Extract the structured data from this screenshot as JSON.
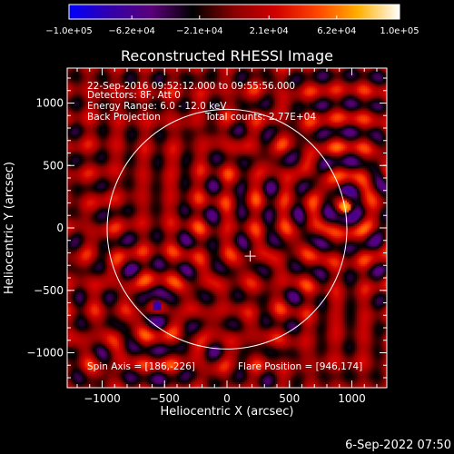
{
  "chart_data": {
    "type": "heatmap",
    "title": "Reconstructed RHESSI Image",
    "xlabel": "Heliocentric X (arcsec)",
    "ylabel": "Heliocentric Y (arcsec)",
    "xlim": [
      -1280,
      1280
    ],
    "ylim": [
      -1280,
      1280
    ],
    "x_ticks": [
      -1000,
      -500,
      0,
      500,
      1000
    ],
    "x_tick_labels": [
      "−1000",
      "−500",
      "0",
      "500",
      "1000"
    ],
    "y_ticks": [
      -1000,
      -500,
      0,
      500,
      1000
    ],
    "y_tick_labels": [
      "−1000",
      "−500",
      "0",
      "500",
      "1000"
    ],
    "colorbar": {
      "range": [
        -100000,
        100000
      ],
      "ticks": [
        -100000,
        -62000,
        -21000,
        21000,
        62000,
        100000
      ],
      "tick_labels": [
        "−1.0e+05",
        "−6.2e+04",
        "−2.1e+04",
        "2.1e+04",
        "6.2e+04",
        "1.0e+05"
      ],
      "colormap": [
        "#0000ff",
        "#3300aa",
        "#5a007a",
        "#000000",
        "#8a0000",
        "#d00000",
        "#ff4400",
        "#ffb000",
        "#ffffff"
      ]
    },
    "annotations": [
      "22-Sep-2016 09:52:12.000 to 09:55:56.000",
      "Detectors: 8F, Att 0",
      "Energy Range: 6.0 - 12.0 keV",
      "Back Projection",
      "Total counts: 2.77E+04"
    ],
    "footer_left": "Spin Axis = [186,-226]",
    "footer_right": "Flare Position = [946,174]",
    "solar_disk": {
      "center": [
        0,
        -10
      ],
      "radius": 960
    },
    "spin_axis_marker": [
      186,
      -226
    ],
    "sources": [
      {
        "x": 946,
        "y": 174,
        "sign": "positive"
      },
      {
        "x": -560,
        "y": -620,
        "sign": "negative"
      }
    ],
    "grid": false
  },
  "timestamp": "6-Sep-2022 07:50"
}
